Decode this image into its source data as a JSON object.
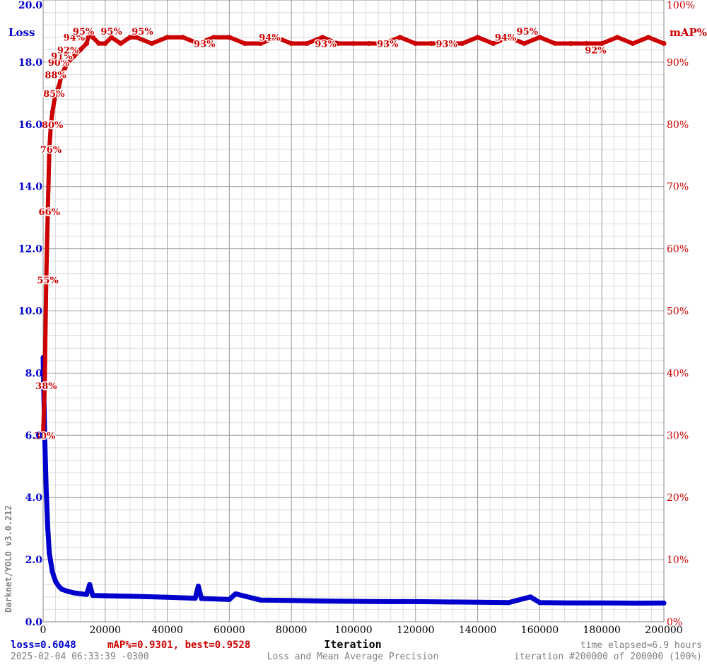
{
  "chart_data": {
    "type": "line",
    "title": "Loss and Mean Average Precision",
    "xlabel": "Iteration",
    "ylabel_left": "Loss",
    "ylabel_right": "mAP%",
    "xlim": [
      0,
      200000
    ],
    "ylim_left": [
      0,
      20
    ],
    "ylim_right": [
      0,
      100
    ],
    "grid": true,
    "x_ticks": [
      "0",
      "20000",
      "40000",
      "60000",
      "80000",
      "100000",
      "120000",
      "140000",
      "160000",
      "180000",
      "200000"
    ],
    "y_left_ticks": [
      "0.0",
      "2.0",
      "4.0",
      "6.0",
      "8.0",
      "10.0",
      "12.0",
      "14.0",
      "16.0",
      "18.0",
      "20.0"
    ],
    "y_right_ticks": [
      "0%",
      "10%",
      "20%",
      "30%",
      "40%",
      "50%",
      "60%",
      "70%",
      "80%",
      "90%",
      "100%"
    ],
    "colors": {
      "loss": "#0000cc",
      "map": "#cc0000"
    },
    "series": [
      {
        "name": "Loss",
        "axis": "left",
        "x": [
          0,
          500,
          1000,
          1500,
          2000,
          3000,
          4000,
          5000,
          6000,
          8000,
          10000,
          14000,
          15000,
          16000,
          20000,
          30000,
          40000,
          49000,
          50000,
          51000,
          60000,
          62000,
          70000,
          80000,
          90000,
          100000,
          110000,
          120000,
          130000,
          140000,
          150000,
          157000,
          160000,
          170000,
          180000,
          190000,
          200000
        ],
        "values": [
          8.5,
          6.0,
          4.2,
          3.0,
          2.2,
          1.6,
          1.3,
          1.15,
          1.05,
          0.98,
          0.93,
          0.88,
          1.2,
          0.85,
          0.84,
          0.82,
          0.79,
          0.76,
          1.15,
          0.75,
          0.72,
          0.9,
          0.7,
          0.69,
          0.67,
          0.66,
          0.65,
          0.65,
          0.64,
          0.63,
          0.62,
          0.8,
          0.62,
          0.61,
          0.61,
          0.6,
          0.6048
        ]
      },
      {
        "name": "mAP%",
        "axis": "right",
        "x": [
          0,
          500,
          1000,
          1500,
          2000,
          2500,
          3000,
          4000,
          5000,
          6000,
          7000,
          8000,
          10000,
          12000,
          14000,
          15000,
          16000,
          18000,
          20000,
          22000,
          25000,
          28000,
          30000,
          35000,
          40000,
          45000,
          50000,
          55000,
          60000,
          65000,
          70000,
          75000,
          80000,
          85000,
          90000,
          95000,
          100000,
          105000,
          110000,
          115000,
          120000,
          125000,
          130000,
          135000,
          140000,
          145000,
          150000,
          155000,
          160000,
          165000,
          170000,
          175000,
          180000,
          185000,
          190000,
          195000,
          200000
        ],
        "values": [
          30,
          38,
          55,
          66,
          76,
          80,
          82,
          85,
          86,
          88,
          89,
          90,
          91,
          92,
          93,
          95,
          94,
          93,
          93,
          94,
          93,
          94,
          94,
          93,
          94,
          94,
          93,
          94,
          94,
          93,
          93,
          94,
          93,
          93,
          94,
          93,
          93,
          93,
          93,
          94,
          93,
          93,
          93,
          93,
          94,
          93,
          94,
          93,
          94,
          93,
          93,
          93,
          93,
          94,
          93,
          94,
          93
        ]
      }
    ],
    "map_labels": [
      {
        "x": 500,
        "v": 30,
        "text": "30%"
      },
      {
        "x": 1000,
        "v": 38,
        "text": "38%"
      },
      {
        "x": 1500,
        "v": 55,
        "text": "55%"
      },
      {
        "x": 2000,
        "v": 66,
        "text": "66%"
      },
      {
        "x": 2500,
        "v": 76,
        "text": "76%"
      },
      {
        "x": 3000,
        "v": 80,
        "text": "80%"
      },
      {
        "x": 3500,
        "v": 85,
        "text": "85%"
      },
      {
        "x": 4000,
        "v": 88,
        "text": "88%"
      },
      {
        "x": 5000,
        "v": 90,
        "text": "90%"
      },
      {
        "x": 6000,
        "v": 91,
        "text": "91%"
      },
      {
        "x": 8000,
        "v": 92,
        "text": "92%"
      },
      {
        "x": 10000,
        "v": 94,
        "text": "94%"
      },
      {
        "x": 13000,
        "v": 95,
        "text": "95%"
      },
      {
        "x": 22000,
        "v": 95,
        "text": "95%"
      },
      {
        "x": 32000,
        "v": 95,
        "text": "95%"
      },
      {
        "x": 52000,
        "v": 93,
        "text": "93%"
      },
      {
        "x": 73000,
        "v": 94,
        "text": "94%"
      },
      {
        "x": 91000,
        "v": 93,
        "text": "93%"
      },
      {
        "x": 111000,
        "v": 93,
        "text": "93%"
      },
      {
        "x": 130000,
        "v": 93,
        "text": "93%"
      },
      {
        "x": 149000,
        "v": 94,
        "text": "94%"
      },
      {
        "x": 156000,
        "v": 95,
        "text": "95%"
      },
      {
        "x": 178000,
        "v": 92,
        "text": "92%"
      }
    ]
  },
  "footer": {
    "loss": "loss=0.6048",
    "map": "mAP%=0.9301, best=0.9528",
    "timestamp": "2025-02-04 06:33:39 -0300",
    "elapsed": "time elapsed=6.9 hours",
    "iteration": "iteration #200000 of 200000 (100%)"
  },
  "side_label": "Darknet/YOLO v3.0.212"
}
